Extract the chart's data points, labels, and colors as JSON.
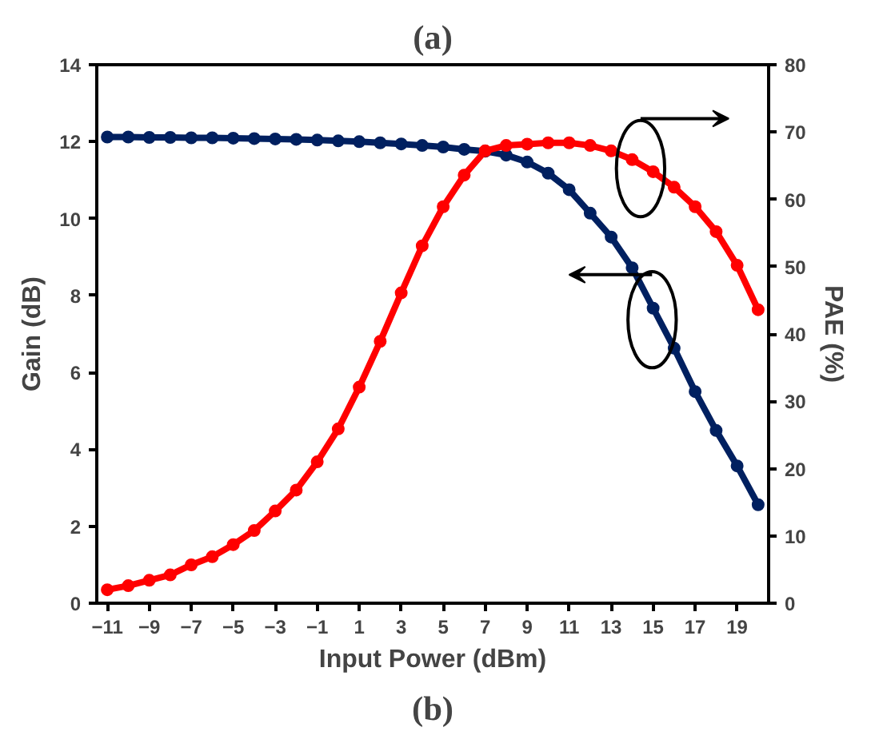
{
  "chart_data": {
    "type": "line",
    "title": "(a)",
    "annotations": [
      "(b)"
    ],
    "xlabel": "Input Power (dBm)",
    "ylabel": "Gain (dB)",
    "y2label": "PAE (%)",
    "x": [
      -11,
      -10,
      -9,
      -8,
      -7,
      -6,
      -5,
      -4,
      -3,
      -2,
      -1,
      0,
      1,
      2,
      3,
      4,
      5,
      6,
      7,
      8,
      9,
      10,
      11,
      12,
      13,
      14,
      15,
      16,
      17,
      18,
      19,
      20
    ],
    "series": [
      {
        "color": "#002060",
        "values": [
          12.12,
          12.12,
          12.11,
          12.11,
          12.1,
          12.1,
          12.09,
          12.08,
          12.07,
          12.06,
          12.04,
          12.02,
          12.0,
          11.97,
          11.94,
          11.9,
          11.86,
          11.8,
          11.75,
          11.65,
          11.47,
          11.18,
          10.75,
          10.14,
          9.52,
          8.72,
          7.67,
          6.63,
          5.5,
          4.49,
          3.57,
          2.56
        ]
      },
      {
        "color": "#ff0000",
        "axis": "y2",
        "values": [
          2.0,
          2.6,
          3.4,
          4.2,
          5.7,
          6.9,
          8.7,
          10.8,
          13.7,
          16.8,
          21.0,
          25.9,
          32.1,
          38.9,
          46.1,
          53.1,
          58.9,
          63.6,
          67.2,
          68.0,
          68.2,
          68.4,
          68.4,
          68.0,
          67.2,
          65.9,
          64.1,
          61.8,
          58.9,
          55.2,
          50.2,
          43.6
        ]
      }
    ],
    "marker": "circle",
    "grid": false,
    "xlim": [
      -11.5,
      20.5
    ],
    "xticks": [
      -11,
      -9,
      -7,
      -5,
      -3,
      -1,
      1,
      3,
      5,
      7,
      9,
      11,
      13,
      15,
      17,
      19
    ],
    "ylim": [
      0,
      14
    ],
    "yticks": [
      0,
      2,
      4,
      6,
      8,
      10,
      12,
      14
    ],
    "y2lim": [
      0,
      80
    ],
    "y2ticks": [
      0,
      10,
      20,
      30,
      40,
      50,
      60,
      70,
      80
    ]
  }
}
